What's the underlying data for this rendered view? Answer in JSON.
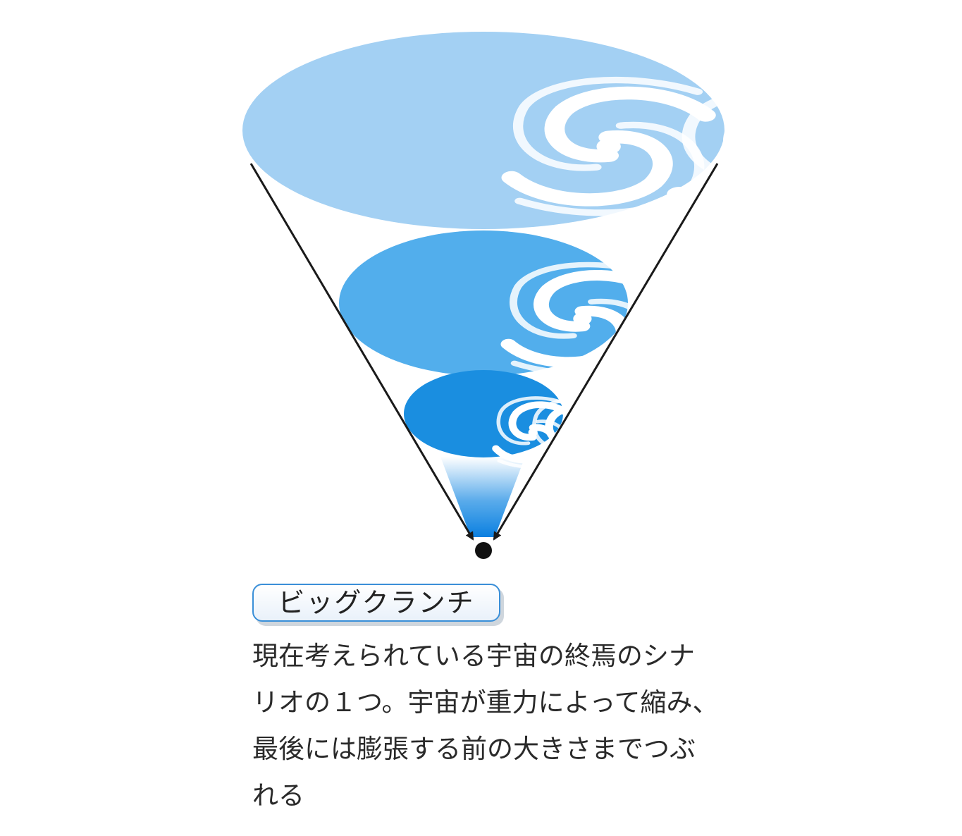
{
  "label": "ビッグクランチ",
  "description_lines": [
    "現在考えられている宇宙の終焉のシナ",
    "リオの１つ。宇宙が重力によって縮み、",
    "最後には膨張する前の大きさまでつぶ",
    "れる"
  ],
  "icons": {
    "galaxy": "spiral-galaxy-icon",
    "singularity": "black-dot-icon"
  },
  "colors": {
    "universe_large": "#a3d0f3",
    "universe_medium": "#52aeec",
    "universe_small": "#1a8ee0",
    "funnel_glow": "#1287e2",
    "arrows": "#1a1a1a",
    "label_border": "#3a8fd8"
  }
}
